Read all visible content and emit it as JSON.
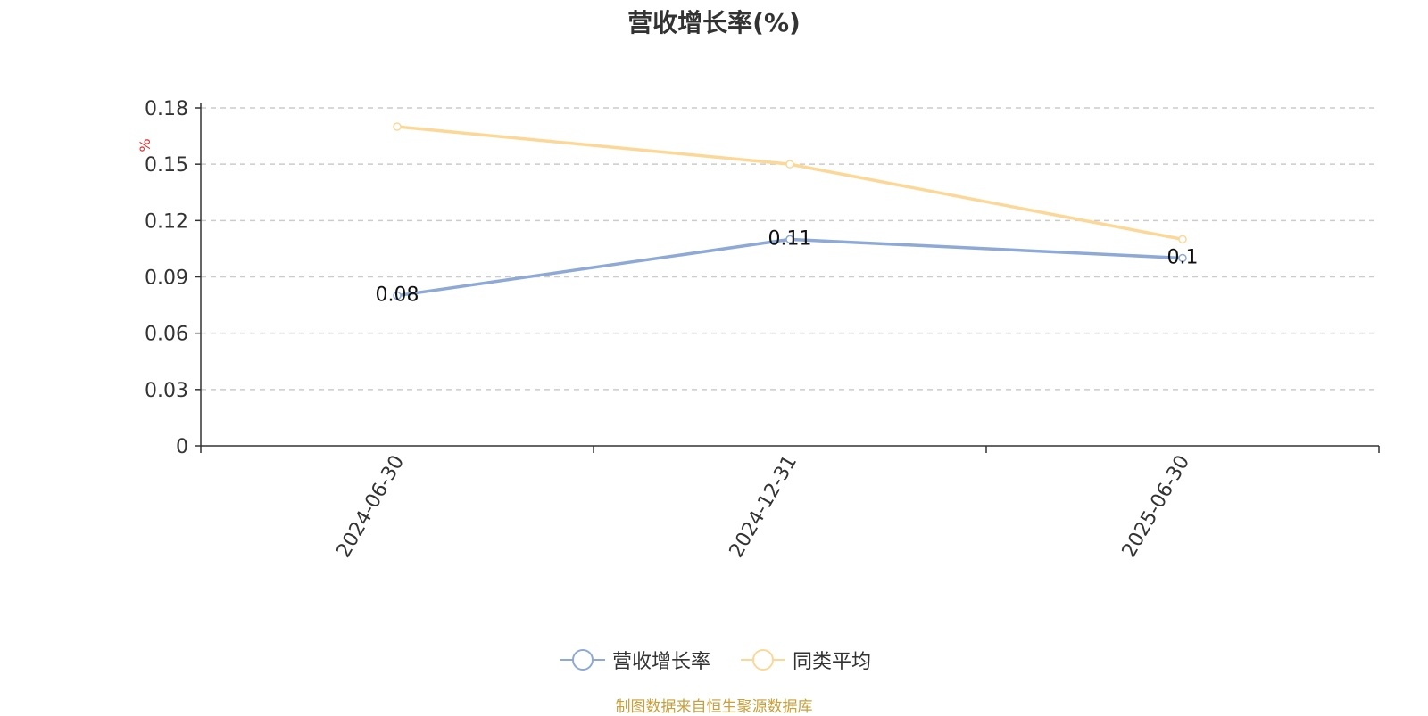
{
  "title": "营收增长率(%)",
  "source_note": "制图数据来自恒生聚源数据库",
  "chart_data": {
    "type": "line",
    "title": "营收增长率(%)",
    "ylabel": "%",
    "xlabel": "",
    "categories": [
      "2024-06-30",
      "2024-12-31",
      "2025-06-30"
    ],
    "yticks": [
      "0",
      "0.03",
      "0.06",
      "0.09",
      "0.12",
      "0.15",
      "0.18"
    ],
    "ylim": [
      0,
      0.18
    ],
    "grid": true,
    "legend_position": "bottom-center",
    "series": [
      {
        "name": "营收增长率",
        "values": [
          0.08,
          0.11,
          0.1
        ],
        "color": "#8ea9d6",
        "show_labels": true
      },
      {
        "name": "同类平均",
        "values": [
          0.17,
          0.15,
          0.11
        ],
        "color": "#fcd898",
        "show_labels": false
      }
    ]
  }
}
